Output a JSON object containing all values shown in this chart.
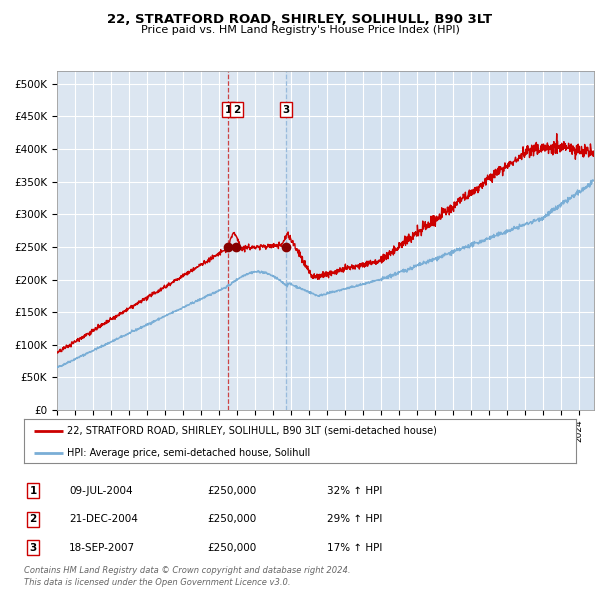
{
  "title": "22, STRATFORD ROAD, SHIRLEY, SOLIHULL, B90 3LT",
  "subtitle": "Price paid vs. HM Land Registry's House Price Index (HPI)",
  "plot_bg_color": "#dce6f1",
  "grid_color": "#ffffff",
  "red_line_color": "#cc0000",
  "blue_line_color": "#7aaed6",
  "marker_color": "#880000",
  "dashed_line_color_red": "#cc4444",
  "dashed_line_color_blue": "#99bbdd",
  "ylim": [
    0,
    520000
  ],
  "yticks": [
    0,
    50000,
    100000,
    150000,
    200000,
    250000,
    300000,
    350000,
    400000,
    450000,
    500000
  ],
  "ytick_labels": [
    "£0",
    "£50K",
    "£100K",
    "£150K",
    "£200K",
    "£250K",
    "£300K",
    "£350K",
    "£400K",
    "£450K",
    "£500K"
  ],
  "sale1_date_num": 2004.52,
  "sale2_date_num": 2004.97,
  "sale3_date_num": 2007.72,
  "sale1_price": 250000,
  "sale2_price": 250000,
  "sale3_price": 250000,
  "legend_property": "22, STRATFORD ROAD, SHIRLEY, SOLIHULL, B90 3LT (semi-detached house)",
  "legend_hpi": "HPI: Average price, semi-detached house, Solihull",
  "table_rows": [
    {
      "num": "1",
      "date": "09-JUL-2004",
      "price": "£250,000",
      "hpi": "32% ↑ HPI"
    },
    {
      "num": "2",
      "date": "21-DEC-2004",
      "price": "£250,000",
      "hpi": "29% ↑ HPI"
    },
    {
      "num": "3",
      "date": "18-SEP-2007",
      "price": "£250,000",
      "hpi": "17% ↑ HPI"
    }
  ],
  "footer": "Contains HM Land Registry data © Crown copyright and database right 2024.\nThis data is licensed under the Open Government Licence v3.0.",
  "xstart": 1995.0,
  "xend": 2024.83
}
